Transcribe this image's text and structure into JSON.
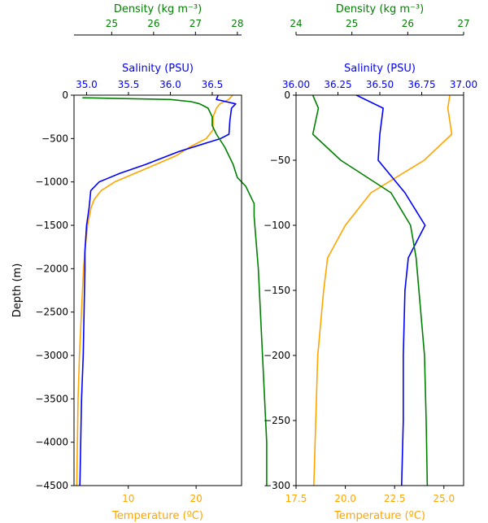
{
  "colors": {
    "temperature": "#ffa500",
    "salinity": "#0000ff",
    "density": "#008000",
    "axis": "#000000"
  },
  "chart_data": [
    {
      "type": "line",
      "panel": "left",
      "ylabel": "Depth (m)",
      "ylim": [
        -4500,
        0
      ],
      "y_ticks": [
        0,
        -500,
        -1000,
        -1500,
        -2000,
        -2500,
        -3000,
        -3500,
        -4000,
        -4500
      ],
      "y_tick_labels": [
        "0",
        "−500",
        "−1000",
        "−1500",
        "−2000",
        "−2500",
        "−3000",
        "−3500",
        "−4000",
        "−4500"
      ],
      "axes": {
        "temperature": {
          "label": "Temperature (ºC)",
          "position": "bottom",
          "lim": [
            2,
            26.7
          ],
          "ticks": [
            10,
            20
          ],
          "tick_labels": [
            "10",
            "20"
          ]
        },
        "salinity": {
          "label": "Salinity (PSU)",
          "position": "top",
          "lim": [
            34.85,
            36.85
          ],
          "ticks": [
            35.0,
            35.5,
            36.0,
            36.5
          ],
          "tick_labels": [
            "35.0",
            "35.5",
            "36.0",
            "36.5"
          ]
        },
        "density": {
          "label": "Density (kg m⁻³)",
          "position": "top",
          "lim": [
            24.1,
            28.1
          ],
          "ticks": [
            25,
            26,
            27,
            28
          ],
          "tick_labels": [
            "25",
            "26",
            "27",
            "28"
          ]
        }
      },
      "series": [
        {
          "key": "temperature",
          "points": [
            [
              25.4,
              0
            ],
            [
              24.8,
              -50
            ],
            [
              23.5,
              -100
            ],
            [
              23.0,
              -150
            ],
            [
              22.5,
              -250
            ],
            [
              22.5,
              -400
            ],
            [
              21.5,
              -500
            ],
            [
              19.0,
              -600
            ],
            [
              17.0,
              -700
            ],
            [
              14.0,
              -800
            ],
            [
              11.0,
              -900
            ],
            [
              8.0,
              -1000
            ],
            [
              6.0,
              -1100
            ],
            [
              5.0,
              -1200
            ],
            [
              4.5,
              -1300
            ],
            [
              4.0,
              -1500
            ],
            [
              3.6,
              -1800
            ],
            [
              3.4,
              -2000
            ],
            [
              3.1,
              -2500
            ],
            [
              2.8,
              -3000
            ],
            [
              2.6,
              -3500
            ],
            [
              2.5,
              -4000
            ],
            [
              2.4,
              -4500
            ]
          ]
        },
        {
          "key": "salinity",
          "points": [
            [
              36.57,
              0
            ],
            [
              36.55,
              -50
            ],
            [
              36.78,
              -100
            ],
            [
              36.73,
              -150
            ],
            [
              36.71,
              -300
            ],
            [
              36.7,
              -450
            ],
            [
              36.6,
              -500
            ],
            [
              36.1,
              -650
            ],
            [
              35.7,
              -800
            ],
            [
              35.4,
              -900
            ],
            [
              35.15,
              -1000
            ],
            [
              35.05,
              -1100
            ],
            [
              35.03,
              -1300
            ],
            [
              35.0,
              -1500
            ],
            [
              34.98,
              -1800
            ],
            [
              34.98,
              -2000
            ],
            [
              34.97,
              -2500
            ],
            [
              34.96,
              -3000
            ],
            [
              34.94,
              -3500
            ],
            [
              34.93,
              -4000
            ],
            [
              34.92,
              -4500
            ]
          ]
        },
        {
          "key": "density",
          "points": [
            [
              24.3,
              -30
            ],
            [
              26.4,
              -50
            ],
            [
              26.9,
              -75
            ],
            [
              27.1,
              -100
            ],
            [
              27.3,
              -150
            ],
            [
              27.4,
              -250
            ],
            [
              27.4,
              -350
            ],
            [
              27.5,
              -450
            ],
            [
              27.7,
              -600
            ],
            [
              27.9,
              -800
            ],
            [
              28.0,
              -950
            ],
            [
              28.2,
              -1050
            ],
            [
              28.3,
              -1150
            ],
            [
              28.4,
              -1250
            ],
            [
              28.4,
              -1400
            ],
            [
              28.5,
              -2000
            ],
            [
              28.6,
              -3000
            ],
            [
              28.7,
              -4000
            ],
            [
              28.7,
              -4500
            ]
          ]
        }
      ]
    },
    {
      "type": "line",
      "panel": "right",
      "ylabel": "",
      "ylim": [
        -300,
        0
      ],
      "y_ticks": [
        0,
        -50,
        -100,
        -150,
        -200,
        -250,
        -300
      ],
      "y_tick_labels": [
        "0",
        "−50",
        "−100",
        "−150",
        "−200",
        "−250",
        "−300"
      ],
      "axes": {
        "temperature": {
          "label": "Temperature (ºC)",
          "position": "bottom",
          "lim": [
            17.5,
            26.0
          ],
          "ticks": [
            17.5,
            20.0,
            22.5,
            25.0
          ],
          "tick_labels": [
            "17.5",
            "20.0",
            "22.5",
            "25.0"
          ]
        },
        "salinity": {
          "label": "Salinity (PSU)",
          "position": "top",
          "lim": [
            36.0,
            37.0
          ],
          "ticks": [
            36.0,
            36.25,
            36.5,
            36.75,
            37.0
          ],
          "tick_labels": [
            "36.00",
            "36.25",
            "36.50",
            "36.75",
            "37.00"
          ]
        },
        "density": {
          "label": "Density (kg m⁻³)",
          "position": "top",
          "lim": [
            24,
            27
          ],
          "ticks": [
            24,
            25,
            26,
            27
          ],
          "tick_labels": [
            "24",
            "25",
            "26",
            "27"
          ]
        }
      },
      "series": [
        {
          "key": "temperature",
          "points": [
            [
              25.3,
              0
            ],
            [
              25.2,
              -10
            ],
            [
              25.3,
              -20
            ],
            [
              25.4,
              -30
            ],
            [
              24.0,
              -50
            ],
            [
              21.3,
              -75
            ],
            [
              20.0,
              -100
            ],
            [
              19.1,
              -125
            ],
            [
              18.9,
              -150
            ],
            [
              18.6,
              -200
            ],
            [
              18.5,
              -250
            ],
            [
              18.4,
              -300
            ]
          ]
        },
        {
          "key": "salinity",
          "points": [
            [
              36.36,
              0
            ],
            [
              36.52,
              -10
            ],
            [
              36.51,
              -20
            ],
            [
              36.5,
              -30
            ],
            [
              36.49,
              -50
            ],
            [
              36.65,
              -75
            ],
            [
              36.77,
              -100
            ],
            [
              36.67,
              -125
            ],
            [
              36.65,
              -150
            ],
            [
              36.64,
              -200
            ],
            [
              36.64,
              -250
            ],
            [
              36.63,
              -300
            ]
          ]
        },
        {
          "key": "density",
          "points": [
            [
              24.3,
              0
            ],
            [
              24.4,
              -10
            ],
            [
              24.35,
              -20
            ],
            [
              24.3,
              -30
            ],
            [
              24.8,
              -50
            ],
            [
              25.7,
              -75
            ],
            [
              26.05,
              -100
            ],
            [
              26.15,
              -125
            ],
            [
              26.2,
              -150
            ],
            [
              26.3,
              -200
            ],
            [
              26.33,
              -250
            ],
            [
              26.35,
              -300
            ]
          ]
        }
      ]
    }
  ]
}
